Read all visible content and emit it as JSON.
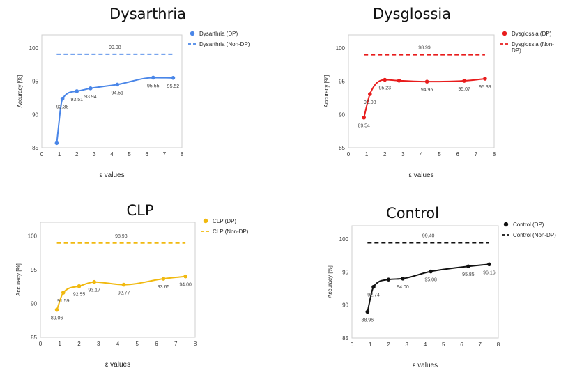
{
  "chart_data": [
    {
      "type": "line",
      "title": "Dysarthria",
      "xlabel": "ε values",
      "ylabel": "Accuracy [%]",
      "xlim": [
        0,
        8
      ],
      "ylim": [
        85,
        102
      ],
      "xticks": [
        "0",
        "1",
        "2",
        "3",
        "4",
        "5",
        "6",
        "7",
        "8"
      ],
      "yticks": [
        "85",
        "90",
        "95",
        "100"
      ],
      "color": "#4a86e8",
      "grid": false,
      "legend_position": "right",
      "series": [
        {
          "name": "Dysarthria (DP)",
          "style": "solid-with-markers",
          "x": [
            0.85,
            1.18,
            2.0,
            2.78,
            4.31,
            6.36,
            7.5
          ],
          "y": [
            85.7,
            92.38,
            93.51,
            93.94,
            94.51,
            95.55,
            95.52
          ],
          "labels": [
            "",
            "92.38",
            "93.51",
            "93.94",
            "94.51",
            "95.55",
            "95.52"
          ]
        },
        {
          "name": "Dysarthria (Non-DP)",
          "style": "dashed",
          "x": [
            0.85,
            7.5
          ],
          "y": [
            99.08,
            99.08
          ],
          "label": "99.08"
        }
      ]
    },
    {
      "type": "line",
      "title": "Dysglossia",
      "xlabel": "ε values",
      "ylabel": "Accuracy [%]",
      "xlim": [
        0,
        8
      ],
      "ylim": [
        85,
        102
      ],
      "xticks": [
        "0",
        "1",
        "2",
        "3",
        "4",
        "5",
        "6",
        "7",
        "8"
      ],
      "yticks": [
        "85",
        "90",
        "95",
        "100"
      ],
      "color": "#e81c1c",
      "grid": false,
      "legend_position": "right",
      "series": [
        {
          "name": "Dysglossia (DP)",
          "style": "solid-with-markers",
          "x": [
            0.85,
            1.18,
            2.0,
            2.78,
            4.31,
            6.36,
            7.5
          ],
          "y": [
            89.54,
            93.08,
            95.23,
            95.1,
            94.95,
            95.07,
            95.39
          ],
          "labels": [
            "89.54",
            "93.08",
            "95.23",
            "",
            "94.95",
            "95.07",
            "95.39"
          ]
        },
        {
          "name": "Dysglossia (Non-DP)",
          "style": "dashed",
          "x": [
            0.85,
            7.5
          ],
          "y": [
            98.99,
            98.99
          ],
          "label": "98.99"
        }
      ]
    },
    {
      "type": "line",
      "title": "CLP",
      "xlabel": "ε values",
      "ylabel": "Accuracy [%]",
      "xlim": [
        0,
        8
      ],
      "ylim": [
        85,
        102
      ],
      "xticks": [
        "0",
        "1",
        "2",
        "3",
        "4",
        "5",
        "6",
        "7",
        "8"
      ],
      "yticks": [
        "85",
        "90",
        "95",
        "100"
      ],
      "color": "#f1b90f",
      "grid": false,
      "legend_position": "right",
      "series": [
        {
          "name": "CLP (DP)",
          "style": "solid-with-markers",
          "x": [
            0.85,
            1.18,
            2.0,
            2.78,
            4.31,
            6.36,
            7.5
          ],
          "y": [
            89.06,
            91.59,
            92.55,
            93.17,
            92.77,
            93.65,
            94.0
          ],
          "labels": [
            "89.06",
            "91.59",
            "92.55",
            "93.17",
            "92.77",
            "93.65",
            "94.00"
          ]
        },
        {
          "name": "CLP (Non-DP)",
          "style": "dashed",
          "x": [
            0.85,
            7.5
          ],
          "y": [
            98.93,
            98.93
          ],
          "label": "98.93"
        }
      ]
    },
    {
      "type": "line",
      "title": "Control",
      "xlabel": "ε values",
      "ylabel": "Accuracy [%]",
      "xlim": [
        0,
        8
      ],
      "ylim": [
        85,
        102
      ],
      "xticks": [
        "0",
        "1",
        "2",
        "3",
        "4",
        "5",
        "6",
        "7",
        "8"
      ],
      "yticks": [
        "85",
        "90",
        "95",
        "100"
      ],
      "color": "#111111",
      "grid": false,
      "legend_position": "right",
      "series": [
        {
          "name": "Control (DP)",
          "style": "solid-with-markers",
          "x": [
            0.85,
            1.18,
            2.0,
            2.78,
            4.31,
            6.36,
            7.5
          ],
          "y": [
            88.96,
            92.74,
            93.85,
            94.0,
            95.08,
            95.85,
            96.16
          ],
          "labels": [
            "88.96",
            "92.74",
            "",
            "94.00",
            "95.08",
            "95.85",
            "96.16"
          ]
        },
        {
          "name": "Control (Non-DP)",
          "style": "dashed",
          "x": [
            0.85,
            7.5
          ],
          "y": [
            99.4,
            99.4
          ],
          "label": "99.40"
        }
      ]
    }
  ]
}
